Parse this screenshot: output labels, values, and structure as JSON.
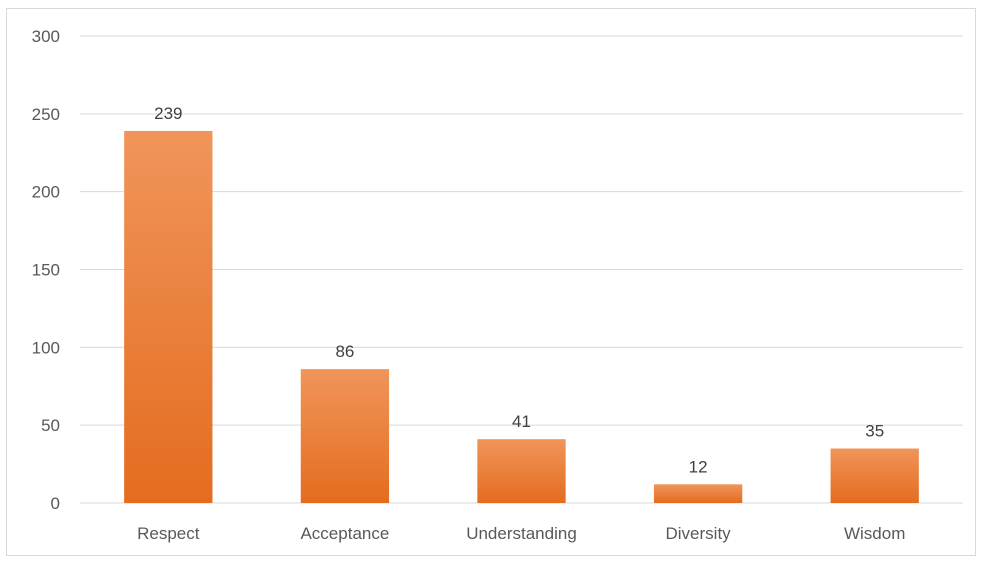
{
  "chart_data": {
    "type": "bar",
    "title": "",
    "xlabel": "",
    "ylabel": "",
    "categories": [
      "Respect",
      "Acceptance",
      "Understanding",
      "Diversity",
      "Wisdom"
    ],
    "values": [
      239,
      86,
      41,
      12,
      35
    ],
    "ylim": [
      0,
      300
    ],
    "yticks": [
      0,
      50,
      100,
      150,
      200,
      250,
      300
    ],
    "grid": true,
    "legend": "none",
    "data_labels": true,
    "bar_color_top": "#f0955a",
    "bar_color_bottom": "#e46c1f",
    "gridline_color": "#d9d9d9"
  }
}
